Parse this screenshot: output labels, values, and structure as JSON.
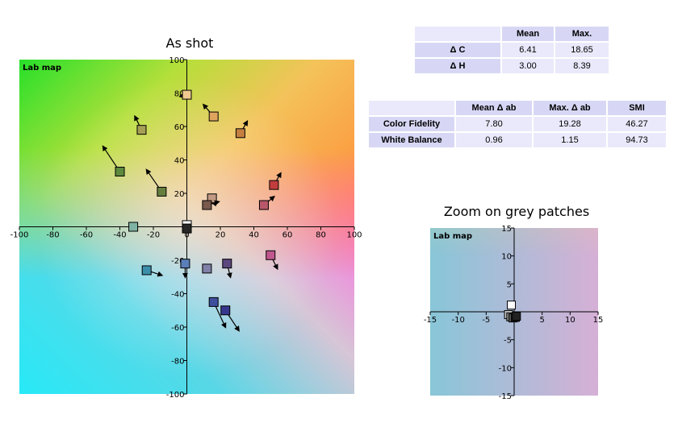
{
  "titles": {
    "main": "As shot",
    "zoom": "Zoom on grey patches"
  },
  "table_delta": {
    "headers": [
      "",
      "Mean",
      "Max."
    ],
    "rows": [
      {
        "label": "Δ C",
        "mean": "6.41",
        "max": "18.65"
      },
      {
        "label": "Δ H",
        "mean": "3.00",
        "max": "8.39"
      }
    ]
  },
  "table_fidelity": {
    "headers": [
      "",
      "Mean Δ ab",
      "Max. Δ ab",
      "SMI"
    ],
    "rows": [
      {
        "label": "Color Fidelity",
        "mean": "7.80",
        "max": "19.28",
        "smi": "46.27"
      },
      {
        "label": "White Balance",
        "mean": "0.96",
        "max": "1.15",
        "smi": "94.73"
      }
    ]
  },
  "chart_data": [
    {
      "type": "scatter",
      "title": "As shot",
      "inner_label": "Lab map",
      "xlabel": "",
      "ylabel": "",
      "xlim": [
        -100,
        100
      ],
      "ylim": [
        -100,
        100
      ],
      "x_ticks": [
        -100,
        -80,
        -60,
        -40,
        -20,
        0,
        20,
        40,
        60,
        80,
        100
      ],
      "y_ticks": [
        -100,
        -80,
        -60,
        -40,
        -20,
        0,
        20,
        40,
        60,
        80,
        100
      ],
      "background": "Lab color map",
      "patches": [
        {
          "a": 0,
          "b": 79,
          "da": -4,
          "db": -1,
          "color": "#eec88e"
        },
        {
          "a": 16,
          "b": 66,
          "da": -6,
          "db": 7,
          "color": "#dfa55e"
        },
        {
          "a": -27,
          "b": 58,
          "da": -4,
          "db": 8,
          "color": "#a5a055"
        },
        {
          "a": 32,
          "b": 56,
          "da": 4,
          "db": 7,
          "color": "#c47f41"
        },
        {
          "a": -40,
          "b": 33,
          "da": -10,
          "db": 15,
          "color": "#5d8a3d"
        },
        {
          "a": -15,
          "b": 21,
          "da": -9,
          "db": 13,
          "color": "#667f3f"
        },
        {
          "a": 52,
          "b": 25,
          "da": 4,
          "db": 7,
          "color": "#c23e3e"
        },
        {
          "a": 15,
          "b": 17,
          "da": 2,
          "db": -4,
          "color": "#c29a83"
        },
        {
          "a": 12,
          "b": 13,
          "da": 7,
          "db": 2,
          "color": "#7a5a4c"
        },
        {
          "a": 46,
          "b": 13,
          "da": 6,
          "db": 5,
          "color": "#b9576a"
        },
        {
          "a": -32,
          "b": 0,
          "da": 0,
          "db": 0,
          "color": "#7fb3a3"
        },
        {
          "a": 0,
          "b": 1,
          "da": 0,
          "db": 0,
          "color": "#ffffff"
        },
        {
          "a": 0,
          "b": -1,
          "da": 0,
          "db": 0,
          "color": "#262626"
        },
        {
          "a": 50,
          "b": -17,
          "da": 4,
          "db": -8,
          "color": "#c1578e"
        },
        {
          "a": -1,
          "b": -22,
          "da": 0,
          "db": -8,
          "color": "#5a7fb8"
        },
        {
          "a": 12,
          "b": -25,
          "da": 0,
          "db": 0,
          "color": "#8080a8"
        },
        {
          "a": 24,
          "b": -22,
          "da": 2,
          "db": -8,
          "color": "#5c477f"
        },
        {
          "a": -24,
          "b": -26,
          "da": 9,
          "db": -3,
          "color": "#3c8fab"
        },
        {
          "a": 16,
          "b": -45,
          "da": 7,
          "db": -15,
          "color": "#3e4f9e"
        },
        {
          "a": 23,
          "b": -50,
          "da": 8,
          "db": -12,
          "color": "#36378d"
        }
      ]
    },
    {
      "type": "scatter",
      "title": "Zoom on grey patches",
      "inner_label": "Lab map",
      "xlabel": "",
      "ylabel": "",
      "xlim": [
        -15,
        15
      ],
      "ylim": [
        -15,
        15
      ],
      "x_ticks": [
        -15,
        -10,
        -5,
        0,
        5,
        10,
        15
      ],
      "y_ticks": [
        -15,
        -10,
        -5,
        0,
        5,
        10,
        15
      ],
      "background": "Lab color map",
      "patches": [
        {
          "a": -0.5,
          "b": 1.2,
          "color": "#ffffff"
        },
        {
          "a": -1.0,
          "b": -0.5,
          "color": "#c9c9c9"
        },
        {
          "a": -0.6,
          "b": -0.9,
          "color": "#8a8a8a"
        },
        {
          "a": -0.2,
          "b": -1.1,
          "color": "#5a5a5a"
        },
        {
          "a": 0.2,
          "b": -1.0,
          "color": "#333333"
        },
        {
          "a": 0.4,
          "b": -0.8,
          "color": "#222222"
        }
      ]
    }
  ]
}
